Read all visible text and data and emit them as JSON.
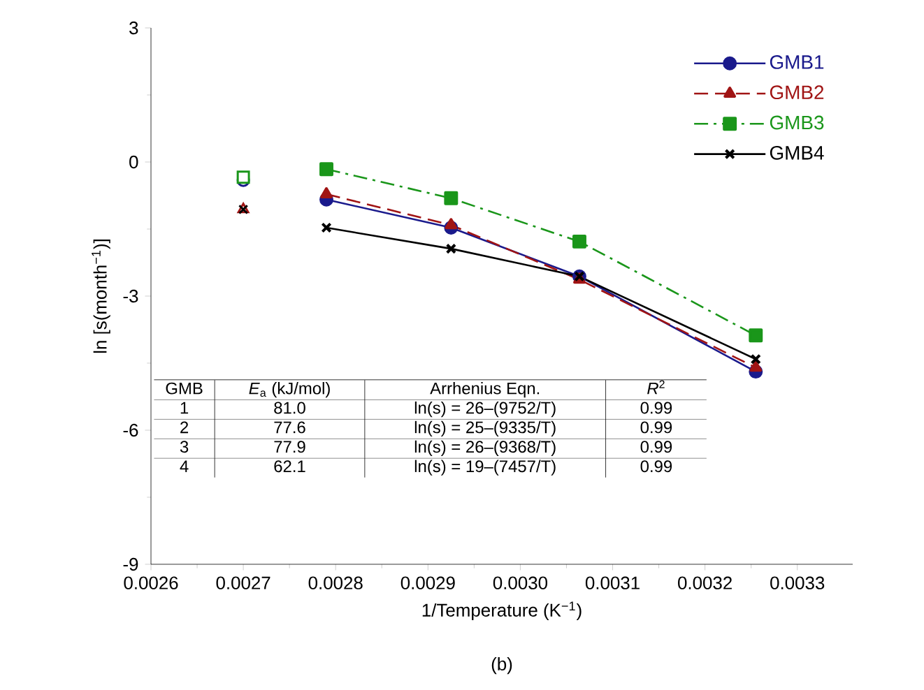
{
  "chart_data": {
    "type": "line",
    "xlabel": "1/Temperature (K$^{−1}$)",
    "ylabel": "ln [s(month$^{−1}$)]",
    "xlim": [
      0.0026,
      0.00336
    ],
    "ylim": [
      -9,
      3
    ],
    "xticks": [
      0.0026,
      0.0027,
      0.0028,
      0.0029,
      {
        "value": 0.003,
        "label": "0.0030"
      },
      0.0031,
      0.0032,
      0.0033
    ],
    "yticks": [
      -9,
      -6,
      -3,
      0,
      3
    ],
    "grid": false,
    "legend": "top right",
    "series": [
      {
        "name": "GMB1",
        "color": "#1a1a8c",
        "marker": "circle",
        "line_style": "solid",
        "x": [
          0.00279,
          0.002925,
          0.003064,
          0.003255
        ],
        "values": [
          -0.84,
          -1.47,
          -2.56,
          -4.69
        ]
      },
      {
        "name": "GMB2",
        "color": "#a01414",
        "marker": "triangle",
        "line_style": "dashed",
        "x": [
          0.00279,
          0.002925,
          0.003064,
          0.003255
        ],
        "values": [
          -0.72,
          -1.41,
          -2.63,
          -4.6
        ]
      },
      {
        "name": "GMB3",
        "color": "#1a961a",
        "marker": "square",
        "line_style": "dashdot",
        "x": [
          0.00279,
          0.002925,
          0.003064,
          0.003255
        ],
        "values": [
          -0.16,
          -0.81,
          -1.78,
          -3.88
        ]
      },
      {
        "name": "GMB4",
        "color": "#000000",
        "marker": "cross",
        "line_style": "solid",
        "x": [
          0.00279,
          0.002925,
          0.003064,
          0.003255
        ],
        "values": [
          -1.47,
          -1.94,
          -2.56,
          -4.41
        ]
      },
      {
        "type": "scatter",
        "color": "#1a1a8c",
        "marker": "circle",
        "x": [
          0.0027
        ],
        "values": [
          -0.41
        ]
      },
      {
        "type": "scatter",
        "color": "#a01414",
        "marker": "triangle",
        "x": [
          0.0027
        ],
        "values": [
          -1.06
        ]
      },
      {
        "type": "scatter",
        "color": "#1a961a",
        "marker": "square",
        "x": [
          0.0027
        ],
        "values": [
          -0.34
        ]
      },
      {
        "type": "scatter",
        "color": "#000000",
        "marker": "cross",
        "x": [
          0.0027
        ],
        "values": [
          -1.06
        ]
      }
    ],
    "annotations": [
      "GMB",
      "*E*$_{a}$ (kJ/mol)",
      "Arrhenius Eqn.",
      "*R*$^{2}$",
      "1",
      "81.0",
      "ln(s) = 26–(9752/T)",
      "0.99",
      "2",
      "77.6",
      "ln(s) = 25–(9335/T)",
      "0.99",
      "3",
      "77.9",
      "ln(s) = 26–(9368/T)",
      "0.99",
      "4",
      "62.1",
      "ln(s) = 19–(7457/T)",
      "0.99",
      "(b)"
    ]
  }
}
